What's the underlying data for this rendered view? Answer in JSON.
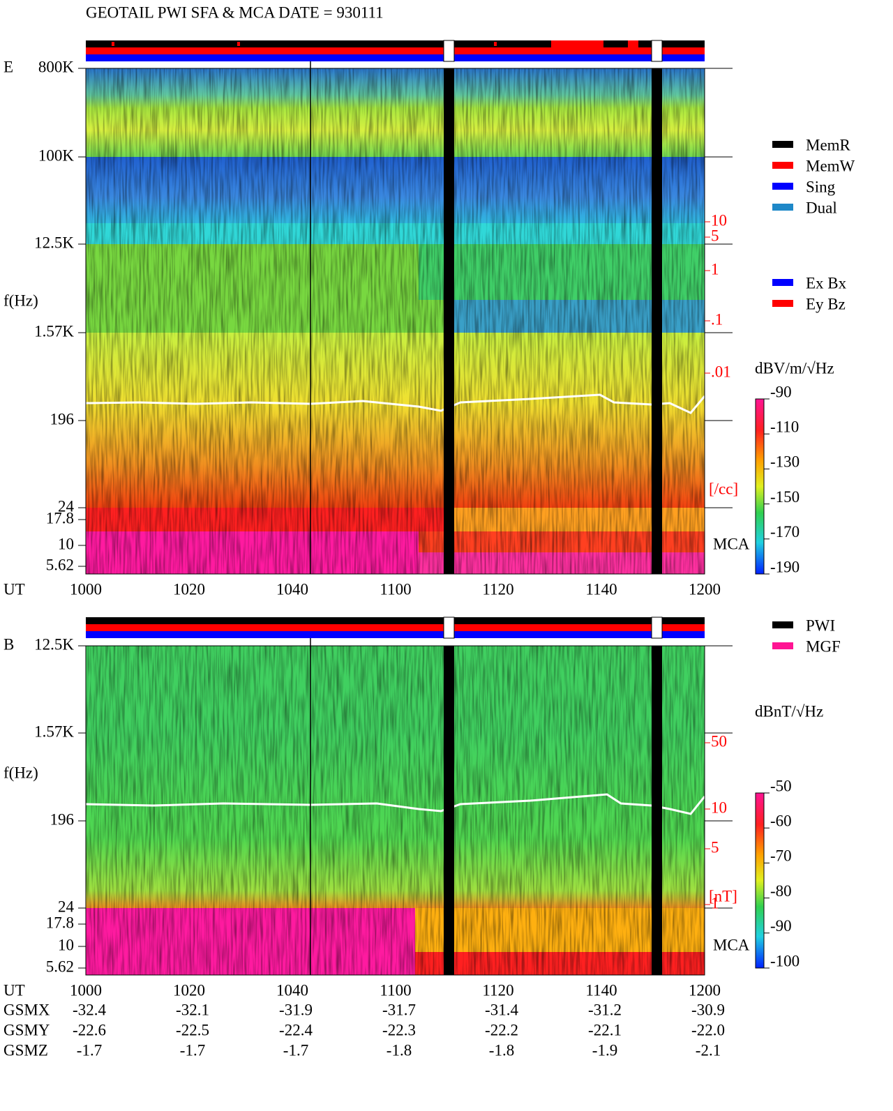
{
  "title": "GEOTAIL  PWI SFA & MCA   DATE = 930111",
  "panels": [
    {
      "label": "E",
      "y_label": "f(Hz)",
      "x_label": "UT",
      "freq_ticks": [
        "800K",
        "100K",
        "12.5K",
        "1.57K",
        "196",
        "24",
        "17.8",
        "10",
        "5.62"
      ],
      "x_ticks": [
        "1000",
        "1020",
        "1040",
        "1100",
        "1120",
        "1140",
        "1200"
      ],
      "density_ticks": [
        "10",
        "5",
        "1",
        ".1",
        ".01"
      ],
      "density_unit": "[/cc]",
      "mca_label": "MCA",
      "mode_legend": [
        {
          "name": "MemR",
          "color": "#000000"
        },
        {
          "name": "MemW",
          "color": "#ff0000"
        },
        {
          "name": "Sing",
          "color": "#0000ff"
        },
        {
          "name": "Dual",
          "color": "#1e88c8"
        }
      ],
      "component_legend": [
        {
          "name": "Ex Bx",
          "color": "#0000ff"
        },
        {
          "name": "Ey Bz",
          "color": "#ff0000"
        }
      ],
      "colorbar": {
        "unit": "dBV/m/√Hz",
        "ticks": [
          -90,
          -110,
          -130,
          -150,
          -170,
          -190
        ]
      }
    },
    {
      "label": "B",
      "y_label": "f(Hz)",
      "x_label": "UT",
      "freq_ticks": [
        "12.5K",
        "1.57K",
        "196",
        "24",
        "17.8",
        "10",
        "5.62"
      ],
      "x_ticks": [
        "1000",
        "1020",
        "1040",
        "1100",
        "1120",
        "1140",
        "1200"
      ],
      "density_ticks": [
        "50",
        "10",
        "5",
        "1"
      ],
      "density_unit": "[nT]",
      "mca_label": "MCA",
      "mode_legend": [
        {
          "name": "PWI",
          "color": "#000000"
        },
        {
          "name": "MGF",
          "color": "#ff1493"
        }
      ],
      "colorbar": {
        "unit": "dBnT/√Hz",
        "ticks": [
          -50,
          -60,
          -70,
          -80,
          -90,
          -100
        ]
      }
    }
  ],
  "orbit": {
    "rows": [
      {
        "name": "GSMX",
        "values": [
          "-32.4",
          "-32.1",
          "-31.9",
          "-31.7",
          "-31.4",
          "-31.2",
          "-30.9"
        ]
      },
      {
        "name": "GSMY",
        "values": [
          "-22.6",
          "-22.5",
          "-22.4",
          "-22.3",
          "-22.2",
          "-22.1",
          "-22.0"
        ]
      },
      {
        "name": "GSMZ",
        "values": [
          "-1.7",
          "-1.7",
          "-1.7",
          "-1.8",
          "-1.8",
          "-1.9",
          "-2.1"
        ]
      }
    ]
  }
}
